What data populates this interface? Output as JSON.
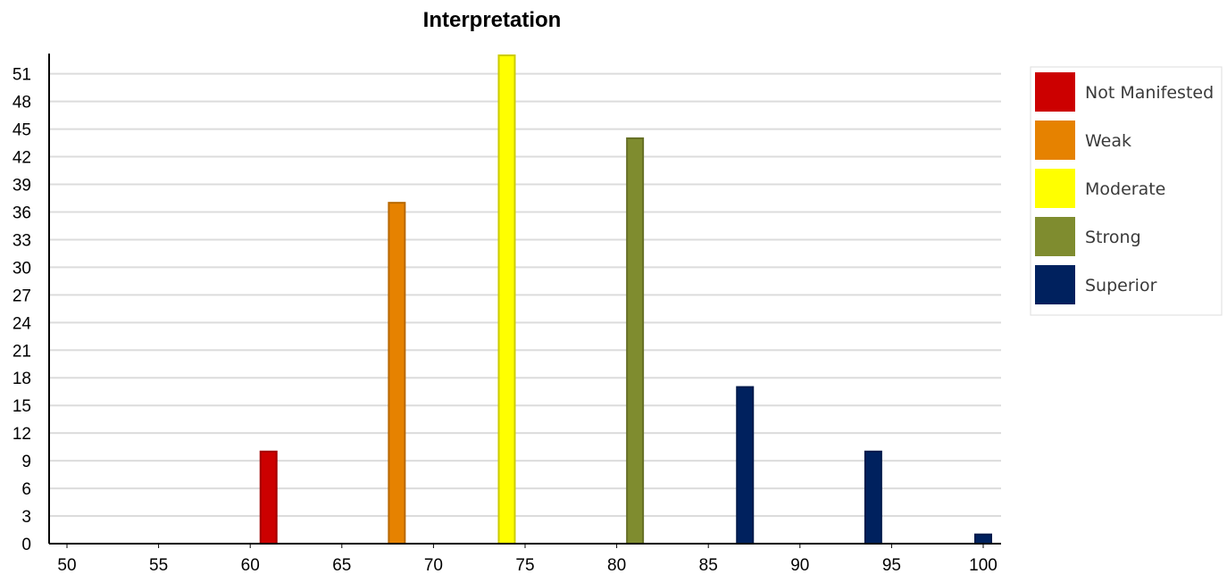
{
  "chart_data": {
    "type": "bar",
    "title": "Interpretation",
    "xlabel": "",
    "ylabel": "",
    "xlim": [
      50,
      100
    ],
    "ylim": [
      0,
      53
    ],
    "x_ticks": [
      50,
      55,
      60,
      65,
      70,
      75,
      80,
      85,
      90,
      95,
      100
    ],
    "y_ticks": [
      0,
      3,
      6,
      9,
      12,
      15,
      18,
      21,
      24,
      27,
      30,
      33,
      36,
      39,
      42,
      45,
      48,
      51
    ],
    "grid": true,
    "legend_position": "right",
    "series": [
      {
        "name": "Not Manifested",
        "color": "#cc0000",
        "points": [
          {
            "x": 61,
            "y": 10
          }
        ]
      },
      {
        "name": "Weak",
        "color": "#e68200",
        "points": [
          {
            "x": 68,
            "y": 37
          }
        ]
      },
      {
        "name": "Moderate",
        "color": "#ffff00",
        "points": [
          {
            "x": 74,
            "y": 53
          }
        ]
      },
      {
        "name": "Strong",
        "color": "#7f8c2f",
        "points": [
          {
            "x": 81,
            "y": 44
          }
        ]
      },
      {
        "name": "Superior",
        "color": "#00215e",
        "points": [
          {
            "x": 87,
            "y": 17
          },
          {
            "x": 94,
            "y": 10
          },
          {
            "x": 100,
            "y": 1
          }
        ]
      }
    ]
  }
}
